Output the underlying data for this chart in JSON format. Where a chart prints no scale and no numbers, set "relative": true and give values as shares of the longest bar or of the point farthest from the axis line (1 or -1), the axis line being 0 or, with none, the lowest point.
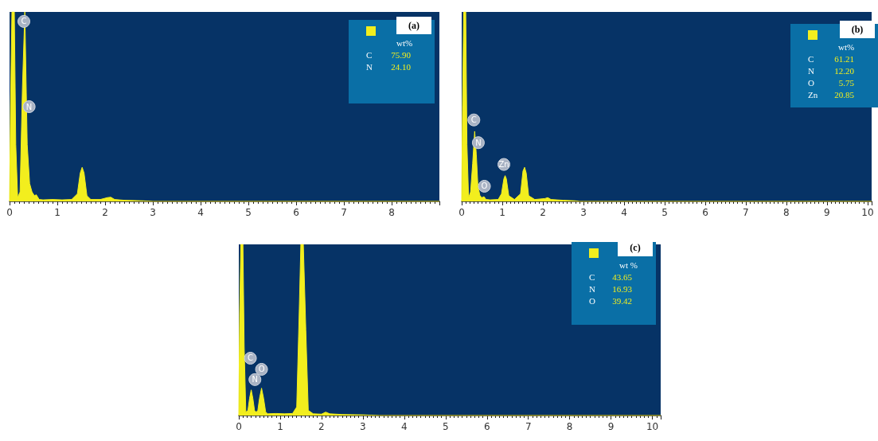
{
  "chart_data": [
    {
      "type": "area",
      "relative": true,
      "color": "#f2ee1e",
      "xlim": [
        0,
        9
      ],
      "xticks": [
        0,
        1,
        2,
        3,
        4,
        5,
        6,
        7,
        8
      ],
      "grid": false,
      "x": [
        0,
        0.02,
        0.05,
        0.1,
        0.13,
        0.17,
        0.22,
        0.27,
        0.32,
        0.37,
        0.42,
        0.47,
        0.52,
        0.56,
        0.62,
        0.7,
        0.9,
        1.1,
        1.3,
        1.42,
        1.48,
        1.52,
        1.56,
        1.62,
        1.7,
        1.9,
        2.05,
        2.12,
        2.2,
        2.4,
        2.8,
        3.0,
        9
      ],
      "values": [
        0,
        0.5,
        1,
        1,
        0.3,
        0.02,
        0.05,
        0.6,
        1,
        0.3,
        0.095,
        0.05,
        0.03,
        0.035,
        0.01,
        0.008,
        0.01,
        0.008,
        0.01,
        0.04,
        0.15,
        0.18,
        0.15,
        0.03,
        0.01,
        0.01,
        0.02,
        0.022,
        0.01,
        0.006,
        0.003,
        0,
        0
      ],
      "annotations": [
        "(a)",
        "wt%",
        "C",
        "75.90",
        "N",
        "24.10",
        {
          "text": "C",
          "x": 0.3,
          "y": 0.95
        },
        {
          "text": "N",
          "x": 0.41,
          "y": 0.5
        }
      ]
    },
    {
      "type": "area",
      "relative": true,
      "color": "#f2ee1e",
      "xlim": [
        0,
        10.1
      ],
      "xticks": [
        0,
        1,
        2,
        3,
        4,
        5,
        6,
        7,
        8,
        9,
        10
      ],
      "grid": false,
      "x": [
        0,
        0.02,
        0.05,
        0.1,
        0.13,
        0.17,
        0.22,
        0.27,
        0.32,
        0.36,
        0.4,
        0.45,
        0.5,
        0.55,
        0.6,
        0.7,
        0.9,
        0.98,
        1.04,
        1.07,
        1.1,
        1.16,
        1.3,
        1.45,
        1.51,
        1.55,
        1.59,
        1.65,
        1.8,
        2.05,
        2.12,
        2.2,
        2.5,
        2.8,
        2.9,
        10.1
      ],
      "values": [
        0,
        0.5,
        1,
        1,
        0.3,
        0.02,
        0.05,
        0.2,
        0.37,
        0.25,
        0.08,
        0.03,
        0.02,
        0.025,
        0.01,
        0.008,
        0.01,
        0.04,
        0.12,
        0.136,
        0.12,
        0.03,
        0.01,
        0.04,
        0.16,
        0.18,
        0.15,
        0.03,
        0.01,
        0.015,
        0.02,
        0.01,
        0.006,
        0.003,
        0,
        0
      ],
      "annotations": [
        "(b)",
        "wt%",
        "C",
        "61.21",
        "N",
        "12.20",
        "O",
        "5.75",
        "Zn",
        "20.85",
        {
          "text": "C",
          "x": 0.3,
          "y": 0.43
        },
        {
          "text": "N",
          "x": 0.41,
          "y": 0.31
        },
        {
          "text": "Zn",
          "x": 1.04,
          "y": 0.195
        },
        {
          "text": "O",
          "x": 0.56,
          "y": 0.08
        }
      ]
    },
    {
      "type": "area",
      "relative": true,
      "color": "#f2ee1e",
      "xlim": [
        0,
        10.2
      ],
      "xticks": [
        0,
        1,
        2,
        3,
        4,
        5,
        6,
        7,
        8,
        9,
        10
      ],
      "grid": false,
      "x": [
        0,
        0.02,
        0.05,
        0.1,
        0.13,
        0.17,
        0.22,
        0.26,
        0.3,
        0.34,
        0.38,
        0.42,
        0.46,
        0.5,
        0.55,
        0.6,
        0.65,
        0.7,
        0.9,
        1.1,
        1.3,
        1.4,
        1.46,
        1.5,
        1.56,
        1.62,
        1.68,
        1.8,
        2.0,
        2.1,
        2.2,
        2.5,
        3.0,
        3.4,
        10.2
      ],
      "values": [
        0,
        0.6,
        1,
        1,
        0.4,
        0.02,
        0.03,
        0.1,
        0.15,
        0.1,
        0.03,
        0.02,
        0.03,
        0.1,
        0.16,
        0.1,
        0.02,
        0.01,
        0.012,
        0.01,
        0.012,
        0.05,
        0.6,
        1,
        1,
        0.5,
        0.03,
        0.01,
        0.008,
        0.02,
        0.01,
        0.006,
        0.004,
        0,
        0
      ],
      "annotations": [
        "(c)",
        "wt %",
        "C",
        "43.65",
        "N",
        "16.93",
        "O",
        "39.42",
        {
          "text": "C",
          "x": 0.28,
          "y": 0.335
        },
        {
          "text": "O",
          "x": 0.55,
          "y": 0.27
        },
        {
          "text": "N",
          "x": 0.39,
          "y": 0.21
        }
      ]
    }
  ]
}
